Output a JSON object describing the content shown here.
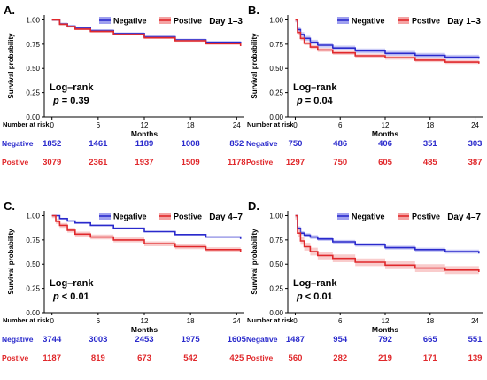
{
  "legend": {
    "negative": "Negative",
    "positive": "Postive"
  },
  "colors": {
    "negative": "#2a2acc",
    "positive": "#e0282b",
    "negative_band": "#9fa0ef",
    "positive_band": "#f4a3a3"
  },
  "risk_title": "Number at risk",
  "chart_data": [
    {
      "panel": "A.",
      "type": "line",
      "title": "Day 1–3",
      "xlabel": "Months",
      "ylabel": "Survival probability",
      "xlim": [
        -1,
        25
      ],
      "ylim": [
        0,
        1.05
      ],
      "xticks": [
        0,
        6,
        12,
        18,
        24
      ],
      "yticks": [
        0,
        0.25,
        0.5,
        0.75,
        1
      ],
      "ytick_labels": [
        "0.00",
        "0.25",
        "0.50",
        "0.75",
        "1.00"
      ],
      "legend_position": "top",
      "annotation": {
        "test": "Log–rank",
        "p": "p = 0.39"
      },
      "series": [
        {
          "name": "Negative",
          "band": 0.012,
          "x": [
            0,
            1,
            2,
            3,
            5,
            8,
            12,
            16,
            20,
            24.5
          ],
          "y": [
            1.0,
            0.96,
            0.935,
            0.915,
            0.89,
            0.86,
            0.825,
            0.795,
            0.77,
            0.745
          ]
        },
        {
          "name": "Postive",
          "band": 0.01,
          "x": [
            0,
            1,
            2,
            3,
            5,
            8,
            12,
            16,
            20,
            24.5
          ],
          "y": [
            1.0,
            0.955,
            0.93,
            0.905,
            0.88,
            0.85,
            0.815,
            0.785,
            0.755,
            0.73
          ]
        }
      ],
      "risk": {
        "rows": [
          {
            "label": "Negative",
            "values": [
              "1852",
              "1461",
              "1189",
              "1008",
              "852"
            ]
          },
          {
            "label": "Postive",
            "values": [
              "3079",
              "2361",
              "1937",
              "1509",
              "1178"
            ]
          }
        ]
      }
    },
    {
      "panel": "B.",
      "type": "line",
      "title": "Day 1–3",
      "xlabel": "Months",
      "ylabel": "Survival probability",
      "xlim": [
        -1,
        25
      ],
      "ylim": [
        0,
        1.05
      ],
      "xticks": [
        0,
        6,
        12,
        18,
        24
      ],
      "yticks": [
        0,
        0.25,
        0.5,
        0.75,
        1
      ],
      "ytick_labels": [
        "0.00",
        "0.25",
        "0.50",
        "0.75",
        "1.00"
      ],
      "legend_position": "top",
      "annotation": {
        "test": "Log–rank",
        "p": "p = 0.04"
      },
      "series": [
        {
          "name": "Negative",
          "band": 0.025,
          "x": [
            0,
            0.3,
            0.7,
            1.2,
            2,
            3,
            5,
            8,
            12,
            16,
            20,
            24.5
          ],
          "y": [
            1.0,
            0.9,
            0.85,
            0.81,
            0.77,
            0.74,
            0.71,
            0.68,
            0.655,
            0.635,
            0.615,
            0.6
          ]
        },
        {
          "name": "Postive",
          "band": 0.02,
          "x": [
            0,
            0.3,
            0.7,
            1.2,
            2,
            3,
            5,
            8,
            12,
            16,
            20,
            24.5
          ],
          "y": [
            1.0,
            0.87,
            0.81,
            0.76,
            0.72,
            0.69,
            0.66,
            0.63,
            0.61,
            0.585,
            0.565,
            0.55
          ]
        }
      ],
      "risk": {
        "rows": [
          {
            "label": "Negative",
            "values": [
              "750",
              "486",
              "406",
              "351",
              "303"
            ]
          },
          {
            "label": "Postive",
            "values": [
              "1297",
              "750",
              "605",
              "485",
              "387"
            ]
          }
        ]
      }
    },
    {
      "panel": "C.",
      "type": "line",
      "title": "Day 4–7",
      "xlabel": "Months",
      "ylabel": "Survival probability",
      "xlim": [
        -1,
        25
      ],
      "ylim": [
        0,
        1.05
      ],
      "xticks": [
        0,
        6,
        12,
        18,
        24
      ],
      "yticks": [
        0,
        0.25,
        0.5,
        0.75,
        1
      ],
      "ytick_labels": [
        "0.00",
        "0.25",
        "0.50",
        "0.75",
        "1.00"
      ],
      "legend_position": "top",
      "annotation": {
        "test": "Log–rank",
        "p": "p < 0.01"
      },
      "series": [
        {
          "name": "Negative",
          "band": 0.008,
          "x": [
            0,
            1,
            2,
            3,
            5,
            8,
            12,
            16,
            20,
            24.5
          ],
          "y": [
            1.0,
            0.97,
            0.945,
            0.925,
            0.9,
            0.87,
            0.835,
            0.805,
            0.78,
            0.76
          ]
        },
        {
          "name": "Postive",
          "band": 0.025,
          "x": [
            0,
            0.5,
            1,
            2,
            3,
            5,
            8,
            12,
            16,
            20,
            24.5
          ],
          "y": [
            1.0,
            0.94,
            0.9,
            0.85,
            0.81,
            0.78,
            0.75,
            0.71,
            0.68,
            0.65,
            0.63
          ]
        }
      ],
      "risk": {
        "rows": [
          {
            "label": "Negative",
            "values": [
              "3744",
              "3003",
              "2453",
              "1975",
              "1605"
            ]
          },
          {
            "label": "Postive",
            "values": [
              "1187",
              "819",
              "673",
              "542",
              "425"
            ]
          }
        ]
      }
    },
    {
      "panel": "D.",
      "type": "line",
      "title": "Day 4–7",
      "xlabel": "Months",
      "ylabel": "Survival probability",
      "xlim": [
        -1,
        25
      ],
      "ylim": [
        0,
        1.05
      ],
      "xticks": [
        0,
        6,
        12,
        18,
        24
      ],
      "yticks": [
        0,
        0.25,
        0.5,
        0.75,
        1
      ],
      "ytick_labels": [
        "0.00",
        "0.25",
        "0.50",
        "0.75",
        "1.00"
      ],
      "legend_position": "top",
      "annotation": {
        "test": "Log–rank",
        "p": "p < 0.01"
      },
      "series": [
        {
          "name": "Negative",
          "band": 0.02,
          "x": [
            0,
            0.3,
            0.7,
            1.2,
            2,
            3,
            5,
            8,
            12,
            16,
            20,
            24.5
          ],
          "y": [
            1.0,
            0.87,
            0.82,
            0.8,
            0.78,
            0.76,
            0.73,
            0.7,
            0.67,
            0.65,
            0.63,
            0.61
          ]
        },
        {
          "name": "Postive",
          "band": 0.04,
          "x": [
            0,
            0.3,
            0.7,
            1.2,
            2,
            3,
            5,
            8,
            12,
            16,
            20,
            24.5
          ],
          "y": [
            1.0,
            0.82,
            0.74,
            0.68,
            0.63,
            0.59,
            0.56,
            0.52,
            0.49,
            0.46,
            0.44,
            0.42
          ]
        }
      ],
      "risk": {
        "rows": [
          {
            "label": "Negative",
            "values": [
              "1487",
              "954",
              "792",
              "665",
              "551"
            ]
          },
          {
            "label": "Postive",
            "values": [
              "560",
              "282",
              "219",
              "171",
              "139"
            ]
          }
        ]
      }
    }
  ]
}
